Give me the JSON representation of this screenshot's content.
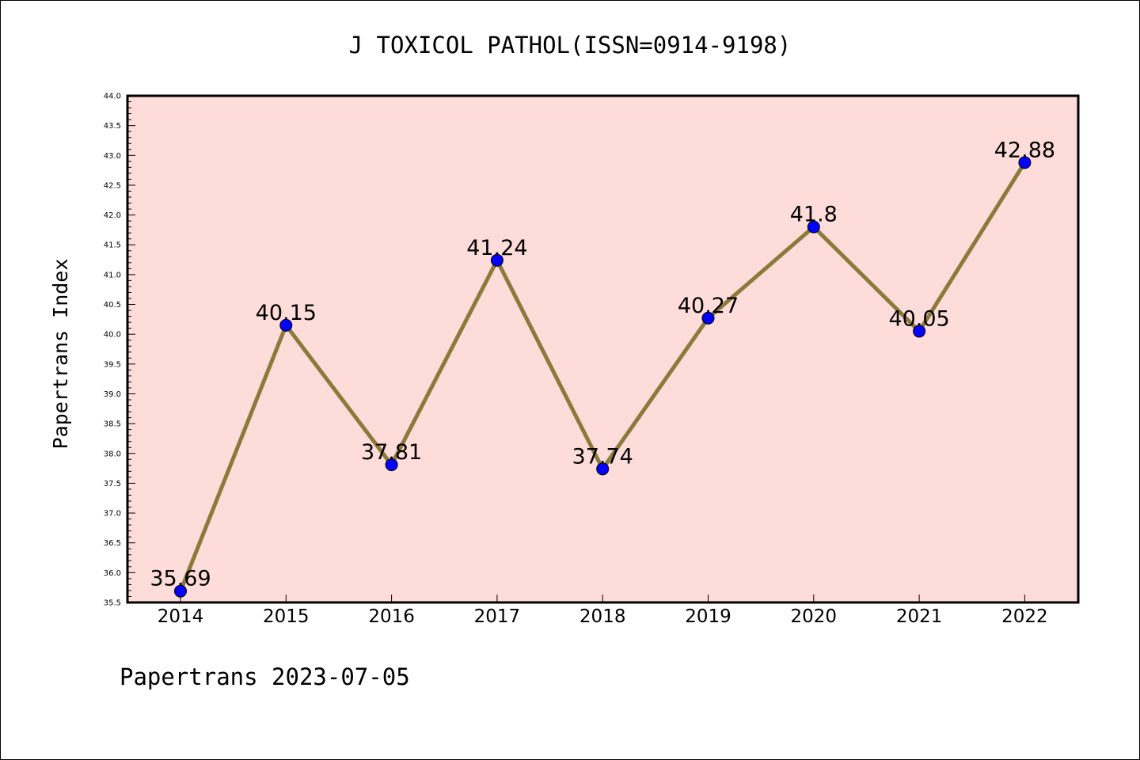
{
  "chart_data": {
    "type": "line",
    "title": "J TOXICOL PATHOL(ISSN=0914-9198)",
    "ylabel": "Papertrans Index",
    "xlabel": "",
    "footer": "Papertrans 2023-07-05",
    "categories": [
      "2014",
      "2015",
      "2016",
      "2017",
      "2018",
      "2019",
      "2020",
      "2021",
      "2022"
    ],
    "values": [
      35.69,
      40.15,
      37.81,
      41.24,
      37.74,
      40.27,
      41.8,
      40.05,
      42.88
    ],
    "value_labels": [
      "35.69",
      "40.15",
      "37.81",
      "41.24",
      "37.74",
      "40.27",
      "41.8",
      "40.05",
      "42.88"
    ],
    "ylim": [
      35.5,
      44.0
    ],
    "yticks": [
      "35.5",
      "36.0",
      "36.5",
      "37.0",
      "37.5",
      "38.0",
      "38.5",
      "39.0",
      "39.5",
      "40.0",
      "40.5",
      "41.0",
      "41.5",
      "42.0",
      "42.5",
      "43.0",
      "43.5",
      "44.0"
    ],
    "grid": false,
    "colors": {
      "plot_background": "#fddcd9",
      "line": "#8b7a3a",
      "marker": "#0000ff",
      "axis": "#000000"
    }
  }
}
